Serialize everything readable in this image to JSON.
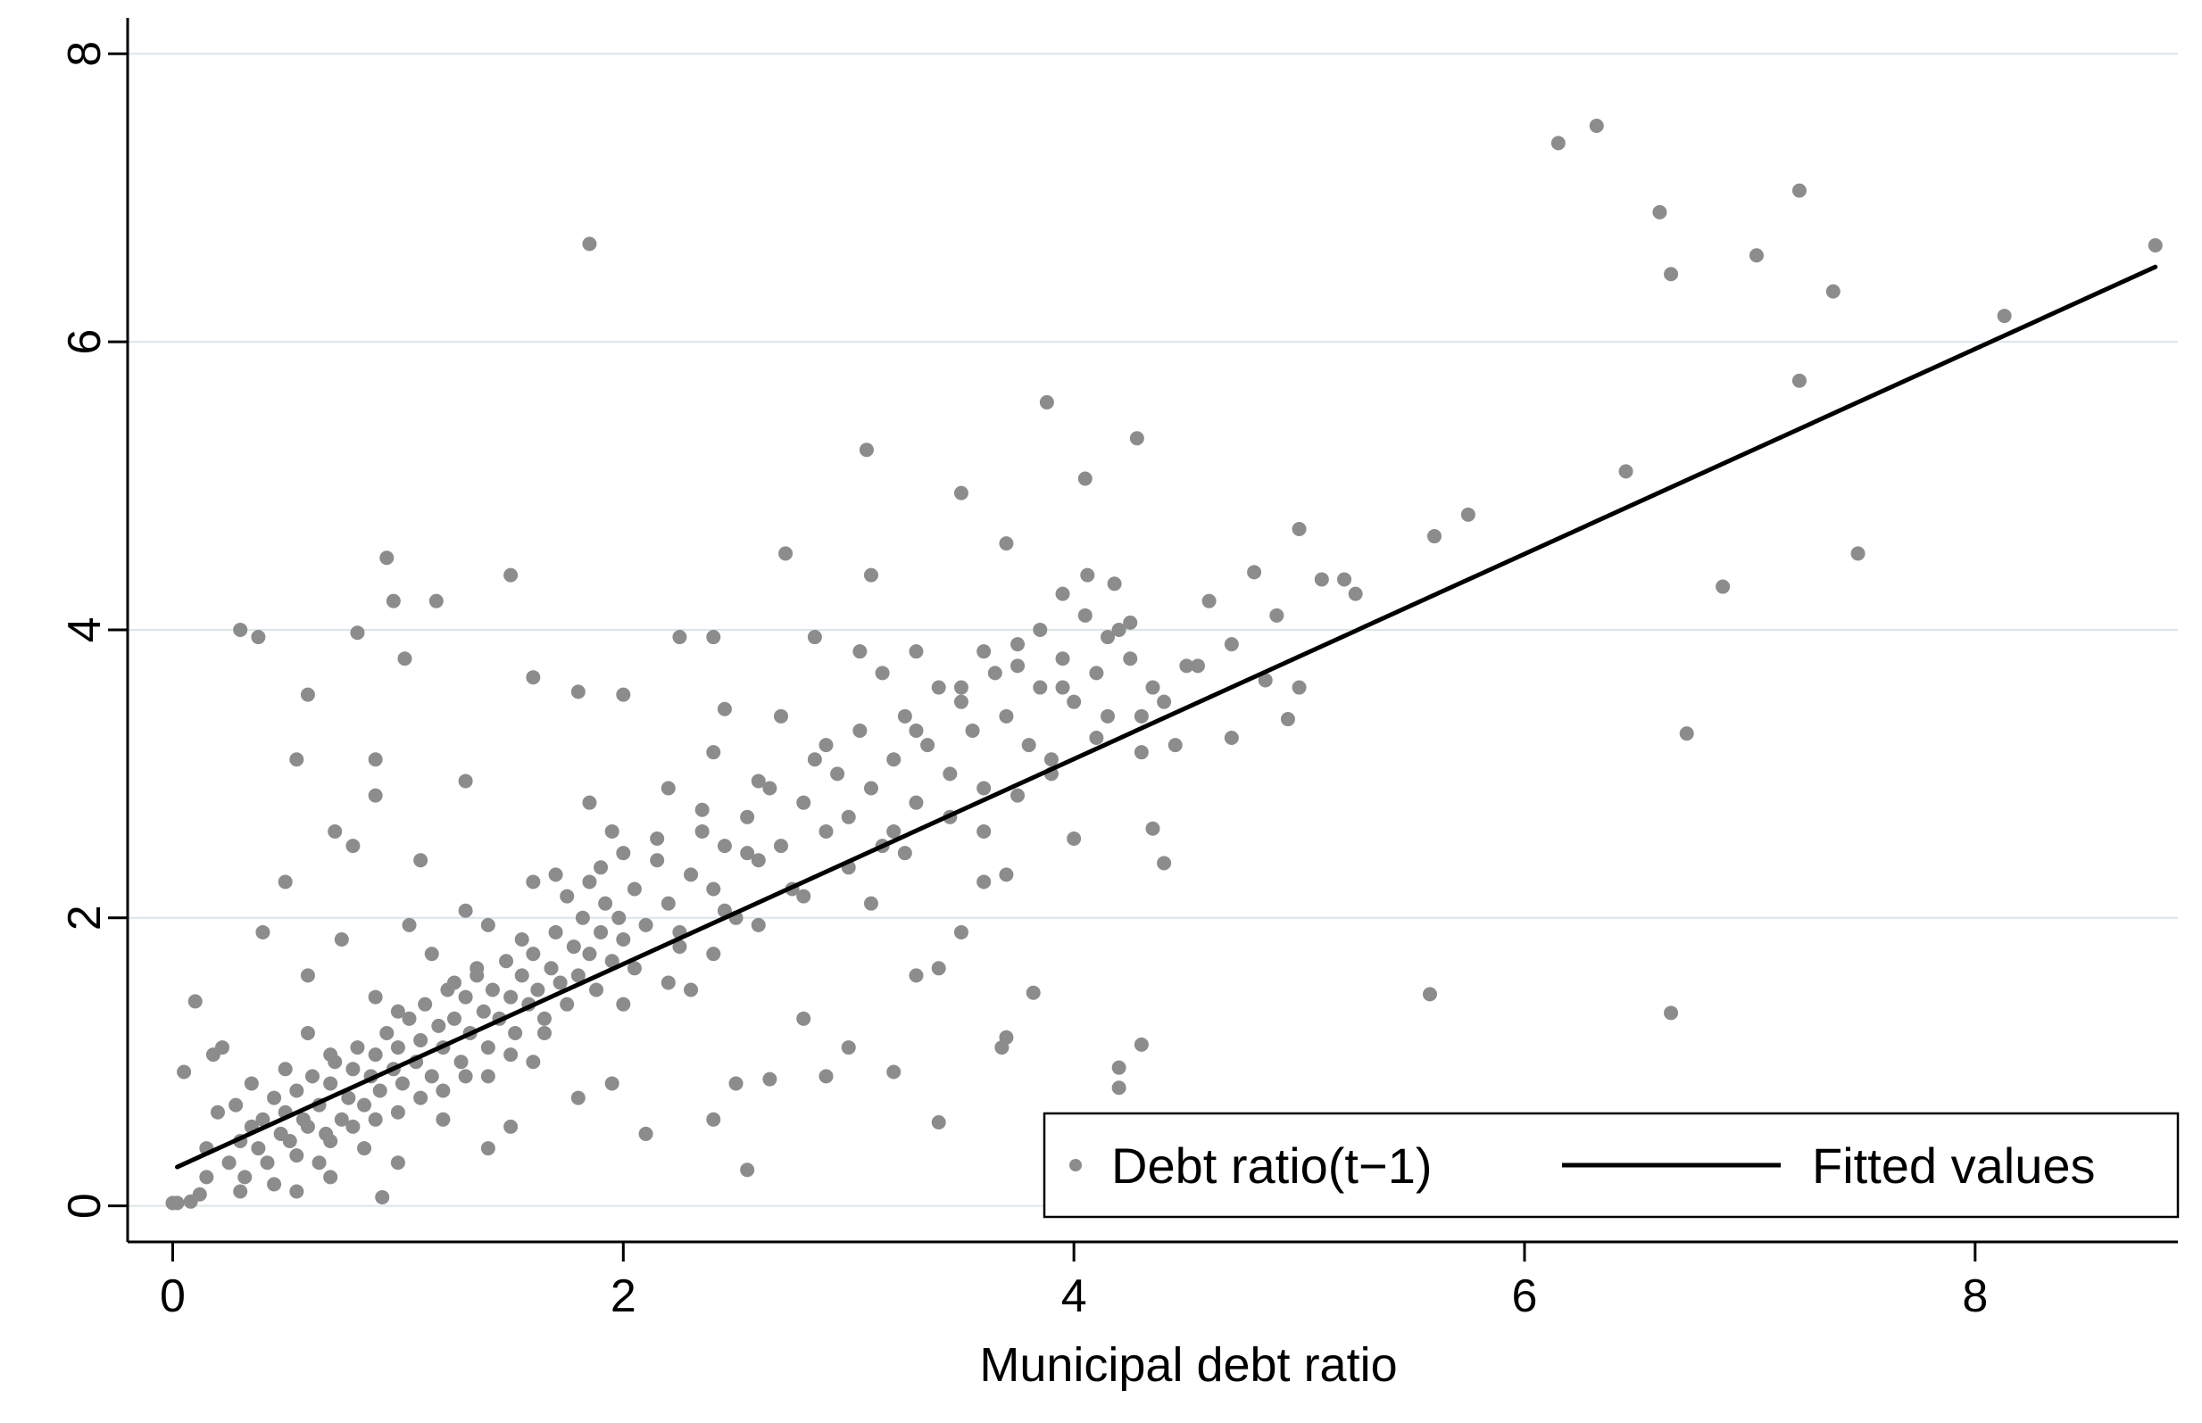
{
  "chart_data": {
    "type": "scatter",
    "title": "",
    "xlabel": "Municipal debt ratio",
    "ylabel": "",
    "xlim": [
      -0.2,
      8.9
    ],
    "ylim": [
      -0.25,
      8.2
    ],
    "xticks": [
      0,
      2,
      4,
      6,
      8
    ],
    "yticks": [
      0,
      2,
      4,
      6,
      8
    ],
    "grid": "horizontal",
    "legend_position": "bottom-right",
    "series": [
      {
        "name": "Debt ratio(t−1)",
        "kind": "points",
        "color": "#8c8c8c",
        "points": [
          [
            0.02,
            0.02
          ],
          [
            0.08,
            0.03
          ],
          [
            0.12,
            0.08
          ],
          [
            0.05,
            0.93
          ],
          [
            0.1,
            1.42
          ],
          [
            0.18,
            1.05
          ],
          [
            0.22,
            1.1
          ],
          [
            0.25,
            0.3
          ],
          [
            0.3,
            0.45
          ],
          [
            0.32,
            0.2
          ],
          [
            0.35,
            0.55
          ],
          [
            0.38,
            0.4
          ],
          [
            0.4,
            0.6
          ],
          [
            0.42,
            0.3
          ],
          [
            0.45,
            0.75
          ],
          [
            0.48,
            0.5
          ],
          [
            0.5,
            0.65
          ],
          [
            0.52,
            0.45
          ],
          [
            0.55,
            0.8
          ],
          [
            0.58,
            0.6
          ],
          [
            0.6,
            0.55
          ],
          [
            0.62,
            0.9
          ],
          [
            0.65,
            0.7
          ],
          [
            0.68,
            0.5
          ],
          [
            0.7,
            0.85
          ],
          [
            0.72,
            1.0
          ],
          [
            0.75,
            0.6
          ],
          [
            0.78,
            0.75
          ],
          [
            0.8,
            0.95
          ],
          [
            0.82,
            1.1
          ],
          [
            0.85,
            0.7
          ],
          [
            0.88,
            0.9
          ],
          [
            0.9,
            1.05
          ],
          [
            0.92,
            0.8
          ],
          [
            0.95,
            1.2
          ],
          [
            0.98,
            0.95
          ],
          [
            1.0,
            1.1
          ],
          [
            1.02,
            0.85
          ],
          [
            1.05,
            1.3
          ],
          [
            1.08,
            1.0
          ],
          [
            1.1,
            1.15
          ],
          [
            1.12,
            1.4
          ],
          [
            1.15,
            0.9
          ],
          [
            1.18,
            1.25
          ],
          [
            1.2,
            1.1
          ],
          [
            1.22,
            1.5
          ],
          [
            1.25,
            1.3
          ],
          [
            1.28,
            1.0
          ],
          [
            1.3,
            1.45
          ],
          [
            1.32,
            1.2
          ],
          [
            1.35,
            1.6
          ],
          [
            1.38,
            1.35
          ],
          [
            1.4,
            1.1
          ],
          [
            1.42,
            1.5
          ],
          [
            1.45,
            1.3
          ],
          [
            1.48,
            1.7
          ],
          [
            1.5,
            1.45
          ],
          [
            1.52,
            1.2
          ],
          [
            1.55,
            1.6
          ],
          [
            1.58,
            1.4
          ],
          [
            1.6,
            1.75
          ],
          [
            1.62,
            1.5
          ],
          [
            1.65,
            1.3
          ],
          [
            1.68,
            1.65
          ],
          [
            1.7,
            1.9
          ],
          [
            1.72,
            1.55
          ],
          [
            1.75,
            1.4
          ],
          [
            1.78,
            1.8
          ],
          [
            1.8,
            1.6
          ],
          [
            1.82,
            2.0
          ],
          [
            1.85,
            1.75
          ],
          [
            1.88,
            1.5
          ],
          [
            1.9,
            1.9
          ],
          [
            1.92,
            2.1
          ],
          [
            1.95,
            1.7
          ],
          [
            1.98,
            2.0
          ],
          [
            2.0,
            1.85
          ],
          [
            2.05,
            2.2
          ],
          [
            2.1,
            1.95
          ],
          [
            2.15,
            2.4
          ],
          [
            2.2,
            2.1
          ],
          [
            2.25,
            1.8
          ],
          [
            2.3,
            2.3
          ],
          [
            2.35,
            2.6
          ],
          [
            2.4,
            2.2
          ],
          [
            2.45,
            2.5
          ],
          [
            2.5,
            2.0
          ],
          [
            2.55,
            2.7
          ],
          [
            2.6,
            2.4
          ],
          [
            2.65,
            2.9
          ],
          [
            2.7,
            2.5
          ],
          [
            2.75,
            2.2
          ],
          [
            2.8,
            2.8
          ],
          [
            2.85,
            3.1
          ],
          [
            2.9,
            2.6
          ],
          [
            2.95,
            3.0
          ],
          [
            3.0,
            2.7
          ],
          [
            3.05,
            3.3
          ],
          [
            3.1,
            2.9
          ],
          [
            3.15,
            2.5
          ],
          [
            3.2,
            3.1
          ],
          [
            3.25,
            3.4
          ],
          [
            3.3,
            2.8
          ],
          [
            3.35,
            3.2
          ],
          [
            3.4,
            3.6
          ],
          [
            3.45,
            3.0
          ],
          [
            3.5,
            3.5
          ],
          [
            3.55,
            3.3
          ],
          [
            3.6,
            2.9
          ],
          [
            3.65,
            3.7
          ],
          [
            3.7,
            3.4
          ],
          [
            3.75,
            3.9
          ],
          [
            3.8,
            3.2
          ],
          [
            3.85,
            3.6
          ],
          [
            3.9,
            3.0
          ],
          [
            3.95,
            3.8
          ],
          [
            4.0,
            3.5
          ],
          [
            4.05,
            4.1
          ],
          [
            4.1,
            3.7
          ],
          [
            4.15,
            3.4
          ],
          [
            4.2,
            4.0
          ],
          [
            4.25,
            3.8
          ],
          [
            4.3,
            3.4
          ],
          [
            4.35,
            3.6
          ],
          [
            4.4,
            3.5
          ],
          [
            4.5,
            3.75
          ],
          [
            4.6,
            4.2
          ],
          [
            4.7,
            3.9
          ],
          [
            4.8,
            4.4
          ],
          [
            4.9,
            4.1
          ],
          [
            5.0,
            4.7
          ],
          [
            5.1,
            4.35
          ],
          [
            5.2,
            4.35
          ],
          [
            5.25,
            4.25
          ],
          [
            5.6,
            4.65
          ],
          [
            5.75,
            4.8
          ],
          [
            6.45,
            5.1
          ],
          [
            6.15,
            7.38
          ],
          [
            6.32,
            7.5
          ],
          [
            6.6,
            6.9
          ],
          [
            6.65,
            6.47
          ],
          [
            7.03,
            6.6
          ],
          [
            7.22,
            7.05
          ],
          [
            7.37,
            6.35
          ],
          [
            7.22,
            5.73
          ],
          [
            8.13,
            6.18
          ],
          [
            8.8,
            6.67
          ],
          [
            7.48,
            4.53
          ],
          [
            6.88,
            4.3
          ],
          [
            6.72,
            3.28
          ],
          [
            6.65,
            1.34
          ],
          [
            5.58,
            1.47
          ],
          [
            1.85,
            6.68
          ],
          [
            0.95,
            4.5
          ],
          [
            0.38,
            3.95
          ],
          [
            1.5,
            4.38
          ],
          [
            1.17,
            4.2
          ],
          [
            0.98,
            4.2
          ],
          [
            0.82,
            3.98
          ],
          [
            1.03,
            3.8
          ],
          [
            3.88,
            5.58
          ],
          [
            3.08,
            5.25
          ],
          [
            4.28,
            5.33
          ],
          [
            4.05,
            5.05
          ],
          [
            3.5,
            4.95
          ],
          [
            3.7,
            4.6
          ],
          [
            2.72,
            4.53
          ],
          [
            3.1,
            4.38
          ],
          [
            0.3,
            4.0
          ],
          [
            4.2,
            0.82
          ],
          [
            4.2,
            0.96
          ],
          [
            4.3,
            1.12
          ],
          [
            3.68,
            1.1
          ],
          [
            3.7,
            1.17
          ],
          [
            3.82,
            1.48
          ],
          [
            3.4,
            0.58
          ],
          [
            3.2,
            0.93
          ],
          [
            2.55,
            0.25
          ],
          [
            2.65,
            0.88
          ],
          [
            2.9,
            0.9
          ],
          [
            0.93,
            0.06
          ],
          [
            0.55,
            0.1
          ],
          [
            0.0,
            0.02
          ],
          [
            0.3,
            0.1
          ],
          [
            0.15,
            0.2
          ],
          [
            0.6,
            3.55
          ],
          [
            0.55,
            3.1
          ],
          [
            0.9,
            3.1
          ],
          [
            1.6,
            3.67
          ],
          [
            1.8,
            3.57
          ],
          [
            2.0,
            3.55
          ],
          [
            1.85,
            2.8
          ],
          [
            1.3,
            2.95
          ],
          [
            0.8,
            2.5
          ],
          [
            0.9,
            2.85
          ],
          [
            1.1,
            2.4
          ],
          [
            0.5,
            2.25
          ],
          [
            0.72,
            2.6
          ],
          [
            0.4,
            1.9
          ],
          [
            2.4,
            3.95
          ],
          [
            2.25,
            3.95
          ],
          [
            2.45,
            3.45
          ],
          [
            2.85,
            3.95
          ],
          [
            3.3,
            3.85
          ],
          [
            3.6,
            3.85
          ],
          [
            3.85,
            4.0
          ],
          [
            3.95,
            4.25
          ],
          [
            4.18,
            4.32
          ],
          [
            4.06,
            4.38
          ],
          [
            3.05,
            3.85
          ],
          [
            2.4,
            0.6
          ],
          [
            2.5,
            0.85
          ],
          [
            2.1,
            0.5
          ],
          [
            1.8,
            0.75
          ],
          [
            1.4,
            0.4
          ],
          [
            1.0,
            0.3
          ],
          [
            0.7,
            0.2
          ],
          [
            2.8,
            1.3
          ],
          [
            3.0,
            1.1
          ],
          [
            3.3,
            1.6
          ],
          [
            3.5,
            1.9
          ],
          [
            3.6,
            2.25
          ],
          [
            3.7,
            2.3
          ],
          [
            4.0,
            2.55
          ],
          [
            4.35,
            2.62
          ],
          [
            4.4,
            2.38
          ],
          [
            3.4,
            1.65
          ],
          [
            2.3,
            1.5
          ],
          [
            1.95,
            0.85
          ],
          [
            1.5,
            0.55
          ],
          [
            1.2,
            0.6
          ],
          [
            0.85,
            0.4
          ],
          [
            0.65,
            0.3
          ],
          [
            0.45,
            0.15
          ],
          [
            1.7,
            2.3
          ],
          [
            1.3,
            2.05
          ],
          [
            1.05,
            1.95
          ],
          [
            0.6,
            1.6
          ],
          [
            0.75,
            1.85
          ],
          [
            2.6,
            2.95
          ],
          [
            3.15,
            3.7
          ],
          [
            4.45,
            3.2
          ],
          [
            4.7,
            3.25
          ],
          [
            4.95,
            3.38
          ],
          [
            5.0,
            3.6
          ],
          [
            4.85,
            3.65
          ],
          [
            3.95,
            3.6
          ],
          [
            3.75,
            3.75
          ],
          [
            3.5,
            3.6
          ],
          [
            3.3,
            3.3
          ],
          [
            2.9,
            3.2
          ],
          [
            2.7,
            3.4
          ],
          [
            2.4,
            3.15
          ],
          [
            2.2,
            2.9
          ],
          [
            1.95,
            2.6
          ],
          [
            1.6,
            2.25
          ],
          [
            1.4,
            1.95
          ],
          [
            1.15,
            1.75
          ],
          [
            0.9,
            1.45
          ],
          [
            0.6,
            1.2
          ],
          [
            0.35,
            0.85
          ],
          [
            0.2,
            0.65
          ],
          [
            0.15,
            0.4
          ],
          [
            2.0,
            1.4
          ],
          [
            2.2,
            1.55
          ],
          [
            2.4,
            1.75
          ],
          [
            2.6,
            1.95
          ],
          [
            2.8,
            2.15
          ],
          [
            3.0,
            2.35
          ],
          [
            3.2,
            2.6
          ],
          [
            1.6,
            1.0
          ],
          [
            1.4,
            0.9
          ],
          [
            1.2,
            0.8
          ],
          [
            1.0,
            0.65
          ],
          [
            0.8,
            0.55
          ],
          [
            2.15,
            2.55
          ],
          [
            2.35,
            2.75
          ],
          [
            2.55,
            2.45
          ],
          [
            1.9,
            2.35
          ],
          [
            1.75,
            2.15
          ],
          [
            1.55,
            1.85
          ],
          [
            1.35,
            1.65
          ],
          [
            1.25,
            1.55
          ],
          [
            1.0,
            1.35
          ],
          [
            0.7,
            1.05
          ],
          [
            0.5,
            0.95
          ],
          [
            0.28,
            0.7
          ],
          [
            1.65,
            1.2
          ],
          [
            1.5,
            1.05
          ],
          [
            1.3,
            0.9
          ],
          [
            1.1,
            0.75
          ],
          [
            0.9,
            0.6
          ],
          [
            0.7,
            0.45
          ],
          [
            0.55,
            0.35
          ],
          [
            2.05,
            1.65
          ],
          [
            2.25,
            1.9
          ],
          [
            2.45,
            2.05
          ],
          [
            2.0,
            2.45
          ],
          [
            1.85,
            2.25
          ],
          [
            3.45,
            2.7
          ],
          [
            3.6,
            2.6
          ],
          [
            3.75,
            2.85
          ],
          [
            3.9,
            3.1
          ],
          [
            4.1,
            3.25
          ],
          [
            4.3,
            3.15
          ],
          [
            4.25,
            4.05
          ],
          [
            4.15,
            3.95
          ],
          [
            4.55,
            3.75
          ],
          [
            3.25,
            2.45
          ],
          [
            3.1,
            2.1
          ]
        ]
      },
      {
        "name": "Fitted values",
        "kind": "line",
        "color": "#000000",
        "x": [
          0.02,
          8.8
        ],
        "y": [
          0.27,
          6.52
        ]
      }
    ]
  }
}
